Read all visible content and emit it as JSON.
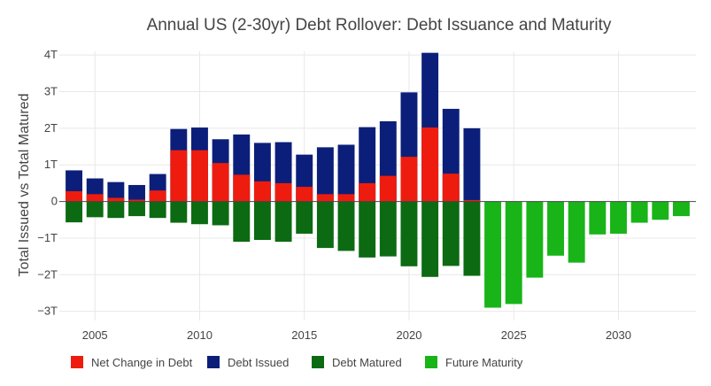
{
  "chart_data": {
    "type": "bar",
    "title": "Annual US (2-30yr) Debt Rollover: Debt Issuance and Maturity",
    "xlabel": "",
    "ylabel": "Total Issued vs Total Matured",
    "ylim": [
      -3.25,
      4.1
    ],
    "y_ticks": [
      -3,
      -2,
      -1,
      0,
      1,
      2,
      3,
      4
    ],
    "y_tick_labels": [
      "−3T",
      "−2T",
      "−1T",
      "0",
      "1T",
      "2T",
      "3T",
      "4T"
    ],
    "xlim": [
      2003.3,
      2033.7
    ],
    "x_ticks": [
      2005,
      2010,
      2015,
      2020,
      2025,
      2030
    ],
    "x_tick_labels": [
      "2005",
      "2010",
      "2015",
      "2020",
      "2025",
      "2030"
    ],
    "grid": true,
    "legend_position": "bottom",
    "years": [
      2004,
      2005,
      2006,
      2007,
      2008,
      2009,
      2010,
      2011,
      2012,
      2013,
      2014,
      2015,
      2016,
      2017,
      2018,
      2019,
      2020,
      2021,
      2022,
      2023,
      2024,
      2025,
      2026,
      2027,
      2028,
      2029,
      2030,
      2031,
      2032,
      2033
    ],
    "series": [
      {
        "name": "Debt Issued",
        "color": "#0b1f7a",
        "values": [
          0.85,
          0.63,
          0.53,
          0.45,
          0.75,
          1.98,
          2.02,
          1.7,
          1.83,
          1.6,
          1.62,
          1.28,
          1.48,
          1.55,
          2.03,
          2.19,
          2.98,
          4.06,
          2.53,
          2.0,
          null,
          null,
          null,
          null,
          null,
          null,
          null,
          null,
          null,
          null
        ]
      },
      {
        "name": "Net Change in Debt",
        "color": "#ee1c0f",
        "values": [
          0.28,
          0.2,
          0.1,
          0.05,
          0.3,
          1.4,
          1.4,
          1.05,
          0.73,
          0.55,
          0.5,
          0.4,
          0.2,
          0.2,
          0.5,
          0.7,
          1.22,
          2.02,
          0.76,
          0.04,
          null,
          null,
          null,
          null,
          null,
          null,
          null,
          null,
          null,
          null
        ]
      },
      {
        "name": "Debt Matured",
        "color": "#0c6a12",
        "values": [
          -0.57,
          -0.43,
          -0.45,
          -0.4,
          -0.45,
          -0.58,
          -0.62,
          -0.65,
          -1.1,
          -1.05,
          -1.1,
          -0.88,
          -1.27,
          -1.35,
          -1.53,
          -1.5,
          -1.77,
          -2.06,
          -1.76,
          -2.03,
          null,
          null,
          null,
          null,
          null,
          null,
          null,
          null,
          null,
          null
        ]
      },
      {
        "name": "Future Maturity",
        "color": "#18b418",
        "values": [
          null,
          null,
          null,
          null,
          null,
          null,
          null,
          null,
          null,
          null,
          null,
          null,
          null,
          null,
          null,
          null,
          null,
          null,
          null,
          null,
          -2.9,
          -2.8,
          -2.08,
          -1.48,
          -1.67,
          -0.9,
          -0.88,
          -0.58,
          -0.5,
          -0.4
        ]
      }
    ],
    "legend": [
      {
        "name": "Net Change in Debt",
        "color": "#ee1c0f"
      },
      {
        "name": "Debt Issued",
        "color": "#0b1f7a"
      },
      {
        "name": "Debt Matured",
        "color": "#0c6a12"
      },
      {
        "name": "Future Maturity",
        "color": "#18b418"
      }
    ]
  }
}
